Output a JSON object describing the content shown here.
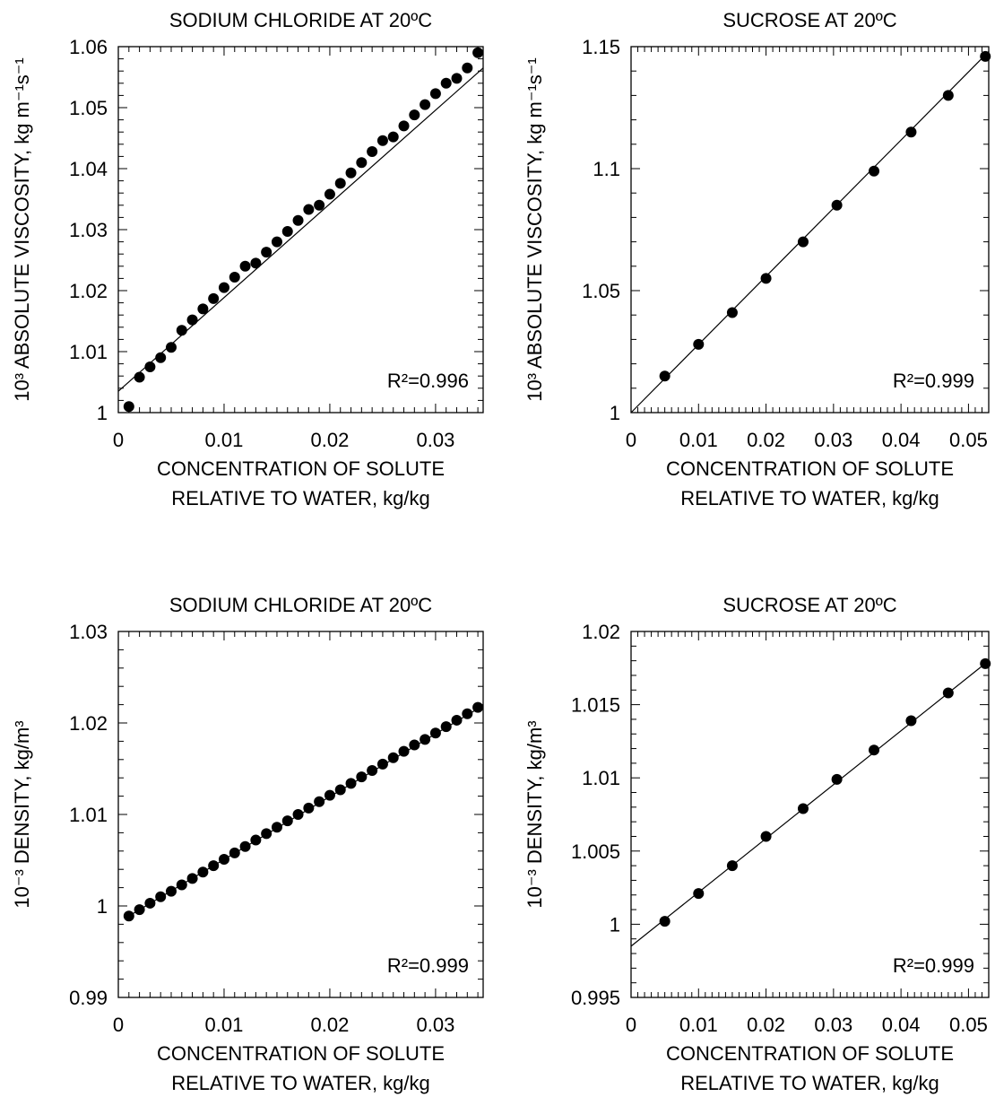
{
  "chart_data": [
    {
      "type": "scatter",
      "title": "SODIUM CHLORIDE AT 20ºC",
      "xlabel": [
        "CONCENTRATION OF SOLUTE",
        "RELATIVE TO WATER, kg/kg"
      ],
      "ylabel": "10³ ABSOLUTE VISCOSITY, kg m⁻¹s⁻¹",
      "xlim": [
        0,
        0.0345
      ],
      "ylim": [
        1.0,
        1.06
      ],
      "xticks": [
        0,
        0.01,
        0.02,
        0.03
      ],
      "yticks": [
        1,
        1.01,
        1.02,
        1.03,
        1.04,
        1.05,
        1.06
      ],
      "annotation": "R²=0.996",
      "fit": {
        "x": [
          0,
          0.0345
        ],
        "y": [
          1.0035,
          1.0565
        ]
      },
      "series": [
        {
          "x": [
            0.001,
            0.002,
            0.003,
            0.004,
            0.005,
            0.006,
            0.007,
            0.008,
            0.009,
            0.01,
            0.011,
            0.012,
            0.013,
            0.014,
            0.015,
            0.016,
            0.017,
            0.018,
            0.019,
            0.02,
            0.021,
            0.022,
            0.023,
            0.024,
            0.025,
            0.026,
            0.027,
            0.028,
            0.029,
            0.03,
            0.031,
            0.032,
            0.033,
            0.034
          ],
          "y": [
            1.001,
            1.0058,
            1.0075,
            1.009,
            1.0107,
            1.0135,
            1.0152,
            1.017,
            1.0187,
            1.0205,
            1.0222,
            1.024,
            1.0245,
            1.0263,
            1.028,
            1.0297,
            1.0315,
            1.0333,
            1.034,
            1.0358,
            1.0376,
            1.0393,
            1.041,
            1.0428,
            1.0446,
            1.0452,
            1.047,
            1.0488,
            1.0505,
            1.0523,
            1.054,
            1.0548,
            1.0565,
            1.059
          ]
        }
      ]
    },
    {
      "type": "scatter",
      "title": "SUCROSE AT 20ºC",
      "xlabel": [
        "CONCENTRATION OF SOLUTE",
        "RELATIVE TO WATER, kg/kg"
      ],
      "ylabel": "10³ ABSOLUTE VISCOSITY, kg m⁻¹s⁻¹",
      "xlim": [
        0,
        0.053
      ],
      "ylim": [
        1.0,
        1.15
      ],
      "xticks": [
        0,
        0.01,
        0.02,
        0.03,
        0.04,
        0.05
      ],
      "yticks": [
        1,
        1.05,
        1.1,
        1.15
      ],
      "annotation": "R²=0.999",
      "fit": {
        "x": [
          0,
          0.053
        ],
        "y": [
          1.0,
          1.148
        ]
      },
      "series": [
        {
          "x": [
            0.005,
            0.01,
            0.015,
            0.02,
            0.0255,
            0.0305,
            0.036,
            0.0415,
            0.047,
            0.0525
          ],
          "y": [
            1.015,
            1.028,
            1.041,
            1.055,
            1.07,
            1.085,
            1.099,
            1.115,
            1.13,
            1.146
          ]
        }
      ]
    },
    {
      "type": "scatter",
      "title": "SODIUM CHLORIDE AT 20ºC",
      "xlabel": [
        "CONCENTRATION OF SOLUTE",
        "RELATIVE TO WATER, kg/kg"
      ],
      "ylabel": "10⁻³ DENSITY, kg/m³",
      "xlim": [
        0,
        0.0345
      ],
      "ylim": [
        0.99,
        1.03
      ],
      "xticks": [
        0,
        0.01,
        0.02,
        0.03
      ],
      "yticks": [
        0.99,
        1,
        1.01,
        1.02,
        1.03
      ],
      "annotation": "R²=0.999",
      "fit": {
        "x": [
          0.001,
          0.0345
        ],
        "y": [
          0.9989,
          1.0219
        ]
      },
      "series": [
        {
          "x": [
            0.001,
            0.002,
            0.003,
            0.004,
            0.005,
            0.006,
            0.007,
            0.008,
            0.009,
            0.01,
            0.011,
            0.012,
            0.013,
            0.014,
            0.015,
            0.016,
            0.017,
            0.018,
            0.019,
            0.02,
            0.021,
            0.022,
            0.023,
            0.024,
            0.025,
            0.026,
            0.027,
            0.028,
            0.029,
            0.03,
            0.031,
            0.032,
            0.033,
            0.034
          ],
          "y": [
            0.9989,
            0.9996,
            1.0003,
            1.001,
            1.0016,
            1.0023,
            1.003,
            1.0037,
            1.0044,
            1.0051,
            1.0058,
            1.0065,
            1.0072,
            1.0079,
            1.0086,
            1.0093,
            1.01,
            1.0107,
            1.0114,
            1.0121,
            1.0127,
            1.0134,
            1.0141,
            1.0148,
            1.0155,
            1.0162,
            1.0169,
            1.0176,
            1.0182,
            1.0189,
            1.0196,
            1.0203,
            1.021,
            1.0217
          ]
        }
      ]
    },
    {
      "type": "scatter",
      "title": "SUCROSE AT 20ºC",
      "xlabel": [
        "CONCENTRATION OF SOLUTE",
        "RELATIVE TO WATER, kg/kg"
      ],
      "ylabel": "10⁻³ DENSITY, kg/m³",
      "xlim": [
        0,
        0.053
      ],
      "ylim": [
        0.995,
        1.02
      ],
      "xticks": [
        0,
        0.01,
        0.02,
        0.03,
        0.04,
        0.05
      ],
      "yticks": [
        0.995,
        1,
        1.005,
        1.01,
        1.015,
        1.02
      ],
      "annotation": "R²=0.999",
      "fit": {
        "x": [
          0,
          0.053
        ],
        "y": [
          0.9985,
          1.018
        ]
      },
      "series": [
        {
          "x": [
            0.005,
            0.01,
            0.015,
            0.02,
            0.0255,
            0.0305,
            0.036,
            0.0415,
            0.047,
            0.0525
          ],
          "y": [
            1.0002,
            1.0021,
            1.004,
            1.006,
            1.0079,
            1.0099,
            1.0119,
            1.0139,
            1.0158,
            1.0178
          ]
        }
      ]
    }
  ]
}
